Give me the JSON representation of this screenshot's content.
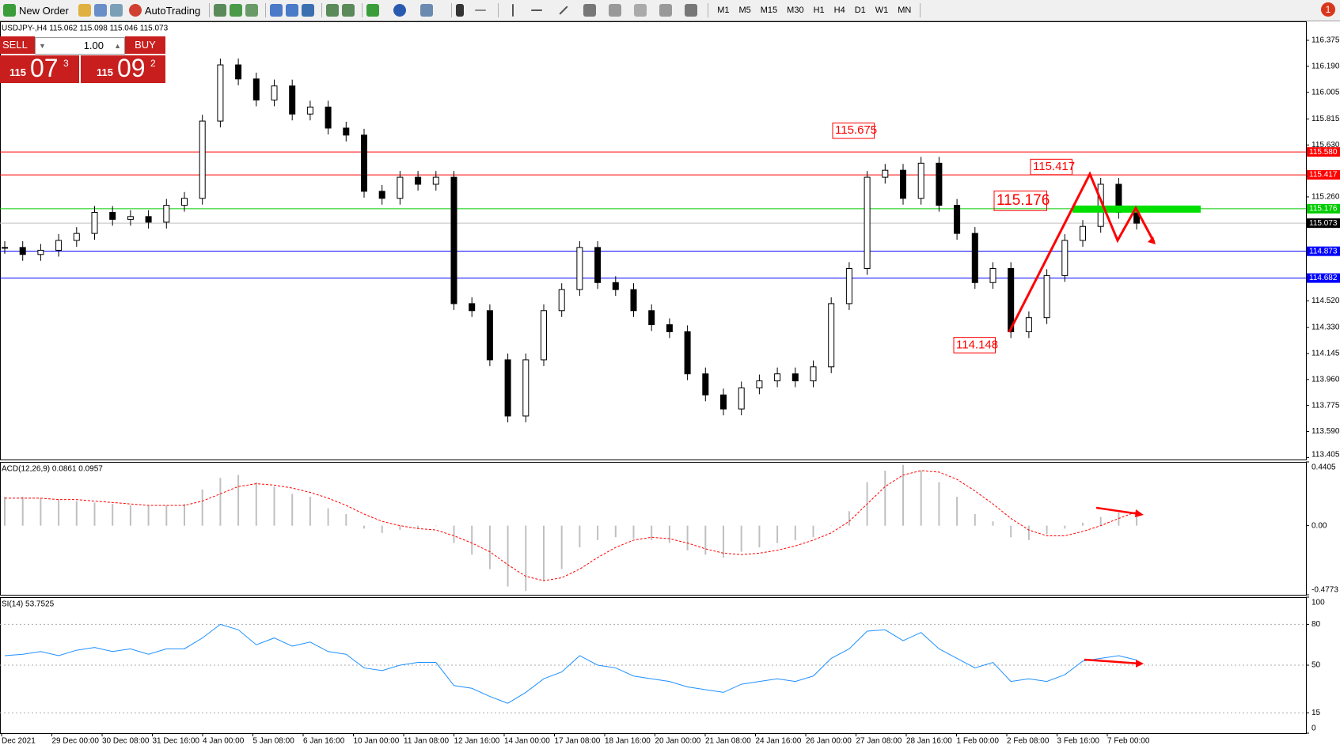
{
  "toolbar": {
    "new_order": "New Order",
    "auto_trading": "AutoTrading",
    "timeframes": [
      "M1",
      "M5",
      "M15",
      "M30",
      "H1",
      "H4",
      "D1",
      "W1",
      "MN"
    ],
    "notifications": "1"
  },
  "trade_panel": {
    "sell": "SELL",
    "buy": "BUY",
    "lots": "1.00",
    "sell_big": "115",
    "sell_pips": "07",
    "sell_frac": "3",
    "buy_big": "115",
    "buy_pips": "09",
    "buy_frac": "2"
  },
  "x_labels": [
    "Dec 2021",
    "29 Dec 00:00",
    "30 Dec 08:00",
    "31 Dec 16:00",
    "4 Jan 00:00",
    "5 Jan 08:00",
    "6 Jan 16:00",
    "10 Jan 00:00",
    "11 Jan 08:00",
    "12 Jan 16:00",
    "14 Jan 00:00",
    "17 Jan 08:00",
    "18 Jan 16:00",
    "20 Jan 00:00",
    "21 Jan 08:00",
    "24 Jan 16:00",
    "26 Jan 00:00",
    "27 Jan 08:00",
    "28 Jan 16:00",
    "1 Feb 00:00",
    "2 Feb 08:00",
    "3 Feb 16:00",
    "7 Feb 00:00"
  ],
  "chart_data": [
    {
      "type": "candlestick",
      "title": "USDJPY-,H4 115.062 115.098 115.046 115.073",
      "values": [
        114.9,
        114.85,
        114.88,
        114.95,
        115.0,
        115.15,
        115.1,
        115.12,
        115.08,
        115.2,
        115.25,
        115.8,
        116.2,
        116.1,
        115.95,
        116.05,
        115.85,
        115.9,
        115.75,
        115.7,
        115.3,
        115.25,
        115.4,
        115.35,
        115.4,
        114.5,
        114.45,
        114.1,
        113.7,
        114.1,
        114.45,
        114.6,
        114.9,
        114.65,
        114.6,
        114.45,
        114.35,
        114.3,
        114.0,
        113.85,
        113.75,
        113.9,
        113.95,
        114.0,
        113.95,
        114.05,
        114.5,
        114.75,
        115.4,
        115.45,
        115.25,
        115.5,
        115.2,
        115.0,
        114.65,
        114.75,
        114.3,
        114.4,
        114.7,
        114.95,
        115.05,
        115.35,
        115.15,
        115.073
      ],
      "ylim": [
        113.39,
        116.51
      ],
      "yticks": [
        116.375,
        {
          "value": 116.19,
          "label": "116.190"
        },
        116.005,
        115.815,
        {
          "value": 115.63,
          "label": "115.630"
        },
        {
          "value": 115.26,
          "label": "115.260"
        },
        {
          "value": 114.52,
          "label": "114.520"
        },
        {
          "value": 114.33,
          "label": "114.330"
        },
        114.145,
        {
          "value": 113.96,
          "label": "113.960"
        },
        113.775,
        {
          "value": 113.59,
          "label": "113.590"
        },
        113.405
      ],
      "hlines": [
        {
          "value": 115.58,
          "label": "115.580",
          "color": "#ff0000"
        },
        {
          "value": 115.417,
          "color": "#ff0000"
        },
        {
          "value": 115.176,
          "color": "#00cc00"
        },
        {
          "value": 115.073,
          "color": "#c0c0c0"
        },
        {
          "value": 114.873,
          "color": "#0000ff"
        },
        {
          "value": 114.682,
          "color": "#0000ff"
        }
      ],
      "annotations": [
        115.675,
        115.417,
        115.176,
        114.148
      ]
    },
    {
      "type": "macd",
      "title": "ACD(12,26,9) 0.0861 0.0957",
      "series": [
        {
          "name": "histogram",
          "color": "#c0c0c0",
          "values": [
            0.2,
            0.2,
            0.19,
            0.18,
            0.17,
            0.16,
            0.15,
            0.14,
            0.14,
            0.14,
            0.15,
            0.25,
            0.33,
            0.35,
            0.3,
            0.27,
            0.22,
            0.2,
            0.12,
            0.08,
            -0.02,
            -0.05,
            -0.03,
            -0.02,
            0.0,
            -0.12,
            -0.2,
            -0.3,
            -0.42,
            -0.45,
            -0.38,
            -0.3,
            -0.15,
            -0.1,
            -0.08,
            -0.09,
            -0.1,
            -0.12,
            -0.17,
            -0.2,
            -0.22,
            -0.18,
            -0.15,
            -0.12,
            -0.1,
            -0.08,
            0.0,
            0.1,
            0.3,
            0.38,
            0.42,
            0.38,
            0.3,
            0.2,
            0.08,
            0.03,
            -0.08,
            -0.1,
            -0.06,
            -0.02,
            0.02,
            0.06,
            0.09,
            0.0861
          ]
        },
        {
          "name": "signal",
          "color": "#ff0000",
          "values": [
            0.19,
            0.19,
            0.19,
            0.18,
            0.18,
            0.17,
            0.16,
            0.15,
            0.14,
            0.14,
            0.14,
            0.17,
            0.22,
            0.27,
            0.29,
            0.28,
            0.26,
            0.23,
            0.19,
            0.14,
            0.08,
            0.03,
            0.0,
            -0.02,
            -0.03,
            -0.07,
            -0.12,
            -0.18,
            -0.27,
            -0.35,
            -0.38,
            -0.36,
            -0.3,
            -0.22,
            -0.15,
            -0.1,
            -0.08,
            -0.09,
            -0.12,
            -0.16,
            -0.19,
            -0.2,
            -0.19,
            -0.17,
            -0.14,
            -0.1,
            -0.05,
            0.03,
            0.15,
            0.27,
            0.35,
            0.38,
            0.37,
            0.32,
            0.24,
            0.15,
            0.05,
            -0.03,
            -0.07,
            -0.07,
            -0.04,
            0.0,
            0.05,
            0.0957
          ]
        }
      ],
      "ylim": [
        -0.4773,
        0.4405
      ],
      "yticks": [
        0.4405,
        {
          "value": 0,
          "label": "0.00"
        },
        -0.4773
      ]
    },
    {
      "type": "line",
      "title": "SI(14) 53.7525",
      "color": "#1e90ff",
      "values": [
        57,
        58,
        60,
        57,
        61,
        63,
        60,
        62,
        58,
        62,
        62,
        70,
        80,
        76,
        65,
        70,
        64,
        67,
        60,
        58,
        48,
        46,
        50,
        52,
        52,
        35,
        33,
        27,
        22,
        30,
        40,
        45,
        57,
        50,
        48,
        42,
        40,
        38,
        34,
        32,
        30,
        36,
        38,
        40,
        38,
        42,
        55,
        62,
        75,
        76,
        68,
        74,
        62,
        55,
        48,
        52,
        38,
        40,
        38,
        43,
        53,
        55,
        57,
        53.7525
      ],
      "ylim": [
        0,
        100
      ],
      "yticks": [
        100,
        80,
        50,
        15,
        0
      ],
      "levels": [
        80,
        50,
        15
      ]
    }
  ]
}
